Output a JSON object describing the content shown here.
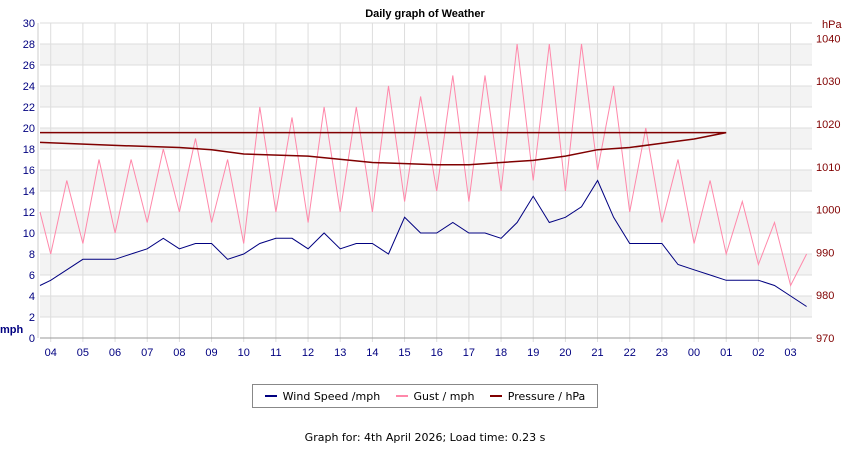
{
  "chart_data": {
    "type": "line",
    "title": "Daily graph of Weather",
    "left_axis": {
      "unit_label": "mph",
      "ylim": [
        0,
        30
      ],
      "ticks": [
        0,
        2,
        4,
        6,
        8,
        10,
        12,
        14,
        16,
        18,
        20,
        22,
        24,
        26,
        28,
        30
      ],
      "color": "#000080"
    },
    "right_axis": {
      "unit_label": "hPa",
      "ylim": [
        970,
        1045
      ],
      "ticks": [
        970,
        980,
        990,
        1000,
        1010,
        1020,
        1030,
        1040
      ],
      "color": "#800000"
    },
    "x_ticks": [
      "04",
      "05",
      "06",
      "07",
      "08",
      "09",
      "10",
      "11",
      "12",
      "13",
      "14",
      "15",
      "16",
      "17",
      "18",
      "19",
      "20",
      "21",
      "22",
      "23",
      "00",
      "01",
      "02",
      "03"
    ],
    "x_range": [
      "03:40",
      "03:40"
    ],
    "grid": true,
    "legend_position": "bottom",
    "series": [
      {
        "name": "Wind Speed /mph",
        "color": "#000080",
        "axis": "left",
        "x": [
          "03:40",
          "04:00",
          "04:30",
          "05:00",
          "05:30",
          "06:00",
          "06:30",
          "07:00",
          "07:30",
          "08:00",
          "08:30",
          "09:00",
          "09:30",
          "10:00",
          "10:30",
          "11:00",
          "11:30",
          "12:00",
          "12:30",
          "13:00",
          "13:30",
          "14:00",
          "14:30",
          "15:00",
          "15:30",
          "16:00",
          "16:30",
          "17:00",
          "17:30",
          "18:00",
          "18:30",
          "19:00",
          "19:30",
          "20:00",
          "20:30",
          "21:00",
          "21:30",
          "22:00",
          "22:30",
          "23:00",
          "23:30",
          "00:00",
          "00:30",
          "01:00",
          "01:30",
          "02:00",
          "02:30",
          "03:00",
          "03:30"
        ],
        "values": [
          5,
          5.5,
          6.5,
          7.5,
          7.5,
          7.5,
          8,
          8.5,
          9.5,
          8.5,
          9,
          9,
          7.5,
          8,
          9,
          9.5,
          9.5,
          8.5,
          10,
          8.5,
          9,
          9,
          8,
          11.5,
          10,
          10,
          11,
          10,
          10,
          9.5,
          11,
          13.5,
          11,
          11.5,
          12.5,
          15,
          11.5,
          9,
          9,
          9,
          7,
          6.5,
          6,
          5.5,
          5.5,
          5.5,
          5,
          4,
          3
        ]
      },
      {
        "name": "Gust / mph",
        "color": "#ff88aa",
        "axis": "left",
        "x": [
          "03:40",
          "04:00",
          "04:30",
          "05:00",
          "05:30",
          "06:00",
          "06:30",
          "07:00",
          "07:30",
          "08:00",
          "08:30",
          "09:00",
          "09:30",
          "10:00",
          "10:30",
          "11:00",
          "11:30",
          "12:00",
          "12:30",
          "13:00",
          "13:30",
          "14:00",
          "14:30",
          "15:00",
          "15:30",
          "16:00",
          "16:30",
          "17:00",
          "17:30",
          "18:00",
          "18:30",
          "19:00",
          "19:30",
          "20:00",
          "20:30",
          "21:00",
          "21:30",
          "22:00",
          "22:30",
          "23:00",
          "23:30",
          "00:00",
          "00:30",
          "01:00",
          "01:30",
          "02:00",
          "02:30",
          "03:00",
          "03:30"
        ],
        "values": [
          12,
          8,
          15,
          9,
          17,
          10,
          17,
          11,
          18,
          12,
          19,
          11,
          17,
          9,
          22,
          12,
          21,
          11,
          22,
          12,
          22,
          12,
          24,
          13,
          23,
          14,
          25,
          13,
          25,
          14,
          28,
          15,
          28,
          14,
          28,
          16,
          24,
          12,
          20,
          11,
          17,
          9,
          15,
          8,
          13,
          7,
          11,
          5,
          8
        ]
      },
      {
        "name": "Pressure / hPa",
        "color": "#800000",
        "axis": "right",
        "x": [
          "03:40",
          "06:00",
          "08:00",
          "09:00",
          "10:00",
          "12:00",
          "14:00",
          "16:00",
          "17:00",
          "18:00",
          "19:00",
          "20:00",
          "21:00",
          "22:00",
          "23:00",
          "00:00",
          "01:00",
          "03:40"
        ],
        "values": [
          1015.7,
          1015,
          1014.5,
          1014,
          1013,
          1012.5,
          1011,
          1010.5,
          1010.5,
          1011,
          1011.5,
          1012.5,
          1014,
          1014.5,
          1015.5,
          1016.5,
          1018,
          1018
        ]
      }
    ]
  },
  "footer": "Graph for: 4th April 2026; Load time: 0.23 s"
}
